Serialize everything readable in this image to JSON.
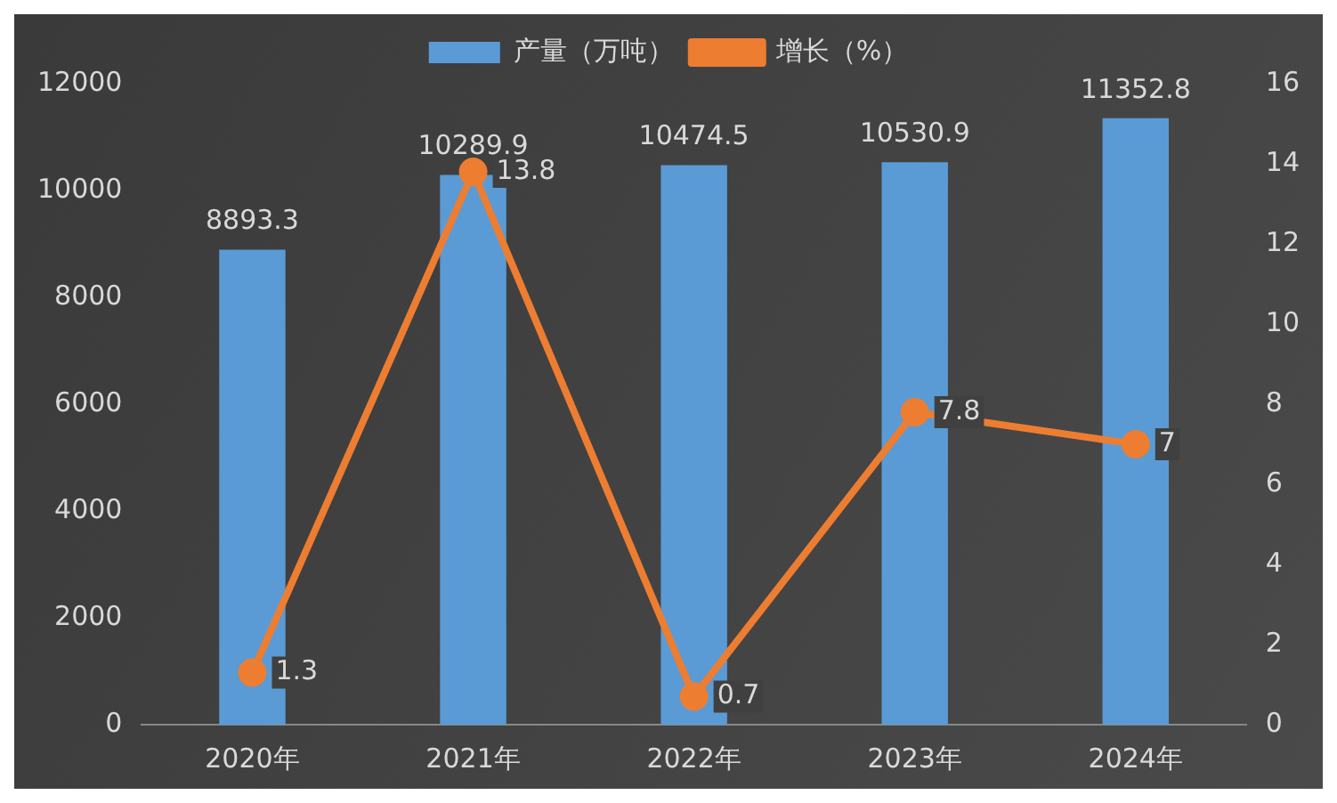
{
  "chart_data": {
    "type": "bar",
    "categories": [
      "2020年",
      "2021年",
      "2022年",
      "2023年",
      "2024年"
    ],
    "series": [
      {
        "name": "产量（万吨）",
        "color": "#5b9bd5",
        "values": [
          8893.3,
          10289.9,
          10474.5,
          10530.9,
          11352.8
        ]
      },
      {
        "name": "增长（%）",
        "type": "line",
        "axis": "y2",
        "color": "#ed7d31",
        "values": [
          1.3,
          13.8,
          0.7,
          7.8,
          7
        ]
      }
    ],
    "ylim": [
      0,
      12000
    ],
    "yticks": [
      0,
      2000,
      4000,
      6000,
      8000,
      10000,
      12000
    ],
    "y2lim": [
      0,
      16
    ],
    "y2ticks": [
      0,
      2,
      4,
      6,
      8,
      10,
      12,
      14,
      16
    ],
    "data_labels": true,
    "legend": "top",
    "marker": "circle",
    "grid": false
  }
}
